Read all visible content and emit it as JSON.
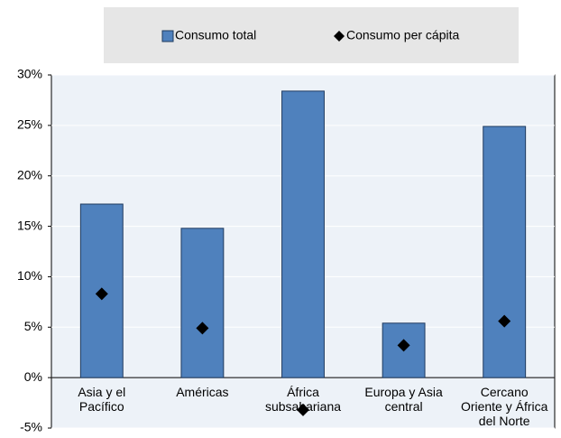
{
  "chart_data": {
    "type": "bar",
    "categories": [
      "Asia y el\nPacífico",
      "Américas",
      "África\nsubsahariana",
      "Europa y Asia\ncentral",
      "Cercano\nOriente y África\ndel Norte"
    ],
    "series": [
      {
        "name": "Consumo total",
        "type": "bar",
        "color": "#4f81bd",
        "values": [
          17.2,
          14.8,
          28.4,
          5.4,
          24.9
        ]
      },
      {
        "name": "Consumo per cápita",
        "type": "scatter",
        "color": "#000000",
        "values": [
          8.3,
          4.9,
          -3.2,
          3.2,
          5.6
        ]
      }
    ],
    "ylim": [
      -5,
      30
    ],
    "yticks": [
      {
        "value": -5,
        "label": "-5%"
      },
      {
        "value": 0,
        "label": "0%"
      },
      {
        "value": 5,
        "label": "5%"
      },
      {
        "value": 10,
        "label": "10%"
      },
      {
        "value": 15,
        "label": "15%"
      },
      {
        "value": 20,
        "label": "20%"
      },
      {
        "value": 25,
        "label": "25%"
      },
      {
        "value": 30,
        "label": "30%"
      }
    ],
    "grid": true,
    "legend": "top"
  }
}
